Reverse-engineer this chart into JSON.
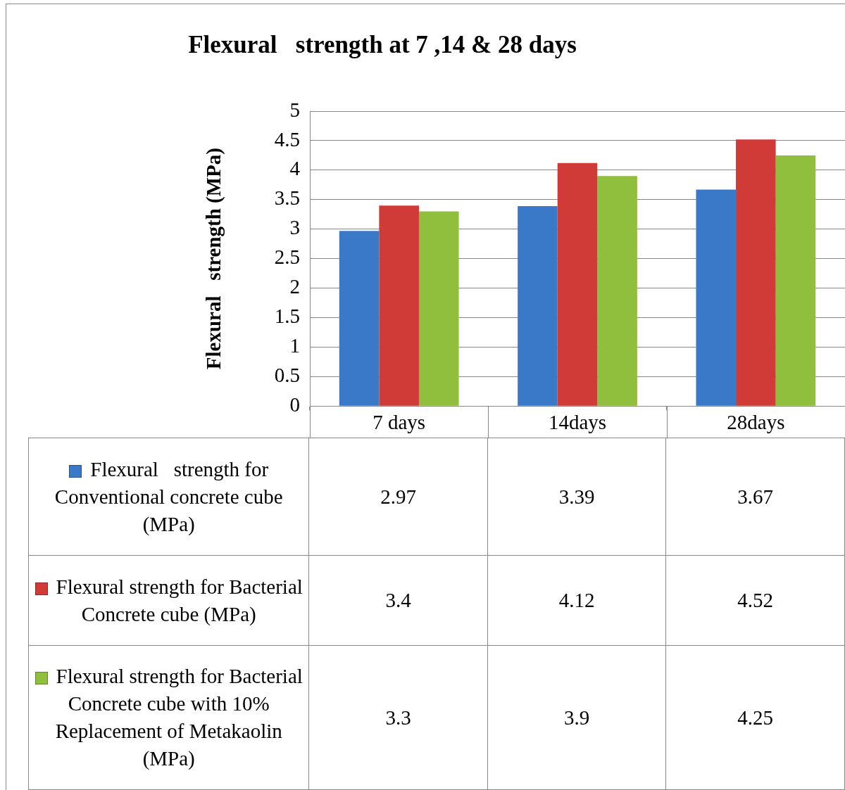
{
  "chart_data": {
    "type": "bar",
    "title": "Flexural   strength at 7 ,14 & 28 days",
    "ylabel": "Flexural   strength (MPa)",
    "categories": [
      "7 days",
      "14days",
      "28days"
    ],
    "series": [
      {
        "name": "Flexural   strength for Conventional concrete cube (MPa)",
        "color": "#3a78c8",
        "values": [
          2.97,
          3.39,
          3.67
        ]
      },
      {
        "name": "Flexural strength for Bacterial Concrete cube (MPa)",
        "color": "#d03a37",
        "values": [
          3.4,
          4.12,
          4.52
        ]
      },
      {
        "name": "Flexural strength for Bacterial Concrete cube with 10% Replacement of Metakaolin (MPa)",
        "color": "#8fbf3c",
        "values": [
          3.3,
          3.9,
          4.25
        ]
      }
    ],
    "ylim": [
      0,
      5
    ],
    "yticks": [
      0,
      0.5,
      1,
      1.5,
      2,
      2.5,
      3,
      3.5,
      4,
      4.5,
      5
    ],
    "grid": "y",
    "legend": "bottom",
    "data_labels": true
  }
}
